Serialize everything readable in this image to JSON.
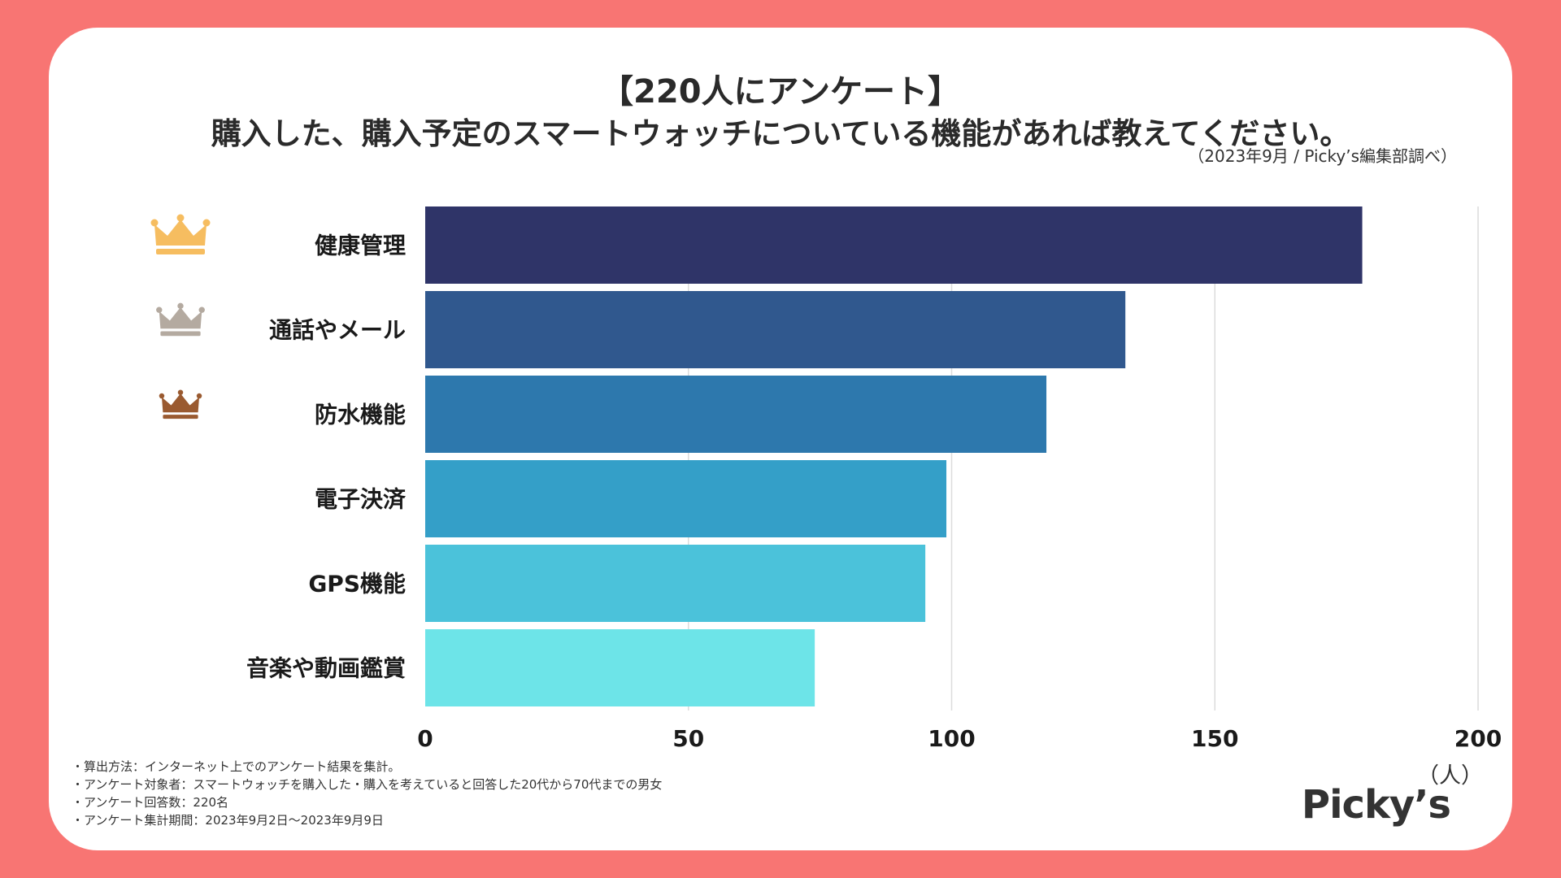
{
  "header": {
    "title_line1": "【220人にアンケート】",
    "title_line2": "購入した、購入予定のスマートウォッチについている機能があれば教えてください。",
    "source": "（2023年9月 / Picky’s編集部調べ）"
  },
  "footer": {
    "notes": [
      "・算出方法：インターネット上でのアンケート結果を集計。",
      "・アンケート対象者：スマートウォッチを購入した・購入を考えていると回答した20代から70代までの男女",
      "・アンケート回答数：220名",
      "・アンケート集計期間：2023年9月2日〜2023年9月9日"
    ],
    "logo": "Picky’s"
  },
  "colors": {
    "background": "#f87573",
    "card": "#ffffff",
    "gold": "#f6bd60",
    "silver": "#b4aaa0",
    "bronze": "#9a5a30"
  },
  "chart_data": {
    "type": "bar",
    "orientation": "horizontal",
    "title": "購入した、購入予定のスマートウォッチについている機能があれば教えてください。",
    "categories": [
      "健康管理",
      "通話やメール",
      "防水機能",
      "電子決済",
      "GPS機能",
      "音楽や動画鑑賞"
    ],
    "values": [
      178,
      133,
      118,
      99,
      95,
      74
    ],
    "bar_colors": [
      "#2f3468",
      "#30588e",
      "#2d78ad",
      "#349fc8",
      "#4bc2da",
      "#6de4e8"
    ],
    "ranking_icons": [
      "crown-gold",
      "crown-silver",
      "crown-bronze"
    ],
    "xlim": [
      0,
      200
    ],
    "xticks": [
      0,
      50,
      100,
      150,
      200
    ],
    "xlabel": "（人）",
    "ylabel": "",
    "grid": true
  }
}
